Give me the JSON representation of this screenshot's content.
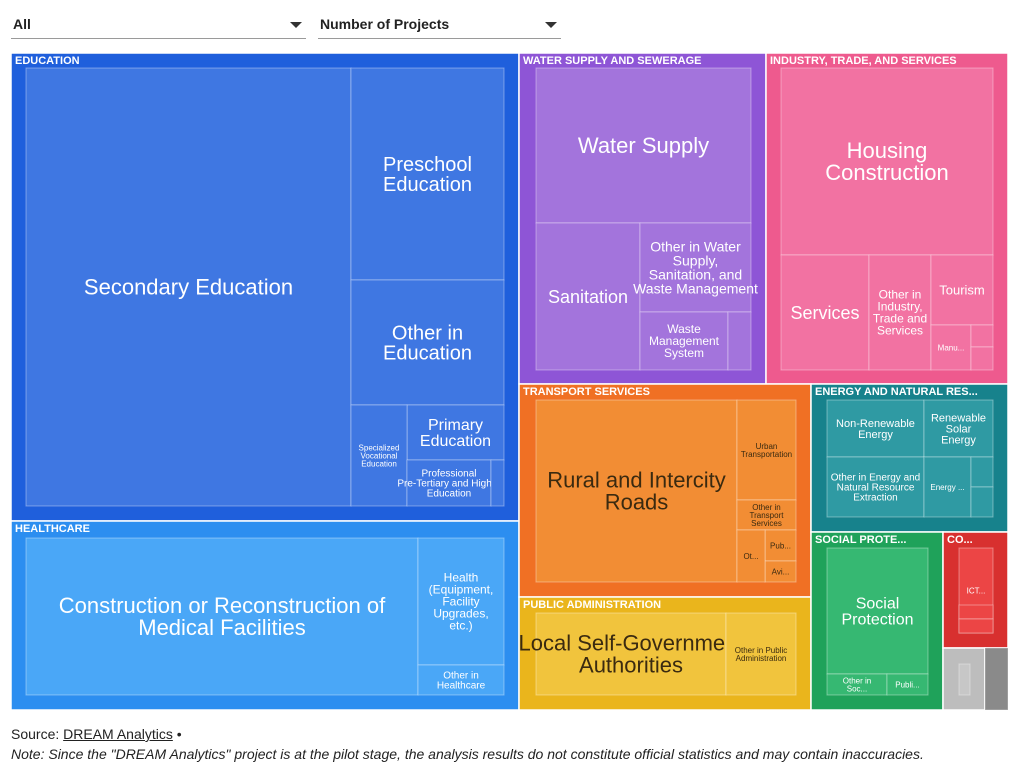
{
  "filters": {
    "region_value": "All",
    "metric_value": "Number of Projects"
  },
  "footer": {
    "source_label": "Source:",
    "source_link": "DREAM Analytics",
    "bullet": "•",
    "note": "Note: Since the \"DREAM Analytics\" project is at the pilot stage, the analysis results do not constitute official statistics and may contain inaccuracies."
  },
  "chart_data": {
    "type": "treemap",
    "metric": "Number of Projects",
    "groups": [
      {
        "label": "EDUCATION",
        "color": "#1f5fdc",
        "tile_color": "#3f77e2",
        "children": [
          {
            "label": "Secondary Education",
            "value": 139
          },
          {
            "label": "Preschool Education",
            "value": 31
          },
          {
            "label": "Other in Education",
            "value": 26
          },
          {
            "label": "Primary Education",
            "value": 7
          },
          {
            "label": "Specialized Vocational Education",
            "value": 7
          },
          {
            "label": "Professional Pre-Tertiary and Higher Education",
            "value": 6
          },
          {
            "label": "",
            "value": 1
          }
        ]
      },
      {
        "label": "HEALTHCARE",
        "color": "#2c8ef0",
        "tile_color": "#4aa7f7",
        "children": [
          {
            "label": "Construction or Reconstruction of Medical Facilities",
            "value": 66
          },
          {
            "label": "Health (Equipment, Facility Upgrades, etc.)",
            "value": 10
          },
          {
            "label": "Other in Healthcare",
            "value": 4
          }
        ]
      },
      {
        "label": "WATER SUPPLY AND SEWERAGE",
        "color": "#8e55d6",
        "tile_color": "#a374dc",
        "children": [
          {
            "label": "Water Supply",
            "value": 35
          },
          {
            "label": "Sanitation",
            "value": 17
          },
          {
            "label": "Other in Water Supply, Sanitation, and Waste Management",
            "value": 10
          },
          {
            "label": "Waste Management System",
            "value": 6
          },
          {
            "label": "",
            "value": 2
          }
        ]
      },
      {
        "label": "INDUSTRY, TRADE, AND SERVICES",
        "color": "#ee5a8e",
        "tile_color": "#f272a2",
        "children": [
          {
            "label": "Housing Construction",
            "value": 34
          },
          {
            "label": "Services",
            "value": 10
          },
          {
            "label": "Other in Industry, Trade and Services",
            "value": 6
          },
          {
            "label": "Tourism",
            "value": 6
          },
          {
            "label": "Manu...",
            "value": 3
          },
          {
            "label": "",
            "value": 1
          },
          {
            "label": "",
            "value": 1
          }
        ]
      },
      {
        "label": "TRANSPORT SERVICES",
        "color": "#f07024",
        "tile_color": "#f28d34",
        "children": [
          {
            "label": "Rural and Intercity Roads",
            "value": 45
          },
          {
            "label": "Urban Transportation",
            "value": 8
          },
          {
            "label": "Other in Transport Services",
            "value": 3
          },
          {
            "label": "Pub...",
            "value": 2
          },
          {
            "label": "Avi...",
            "value": 1
          },
          {
            "label": "Ot...",
            "value": 2
          }
        ]
      },
      {
        "label": "PUBLIC ADMINISTRATION",
        "color": "#eab51c",
        "tile_color": "#f1c43d",
        "children": [
          {
            "label": "Local Self-Government Authorities",
            "value": 23
          },
          {
            "label": "Other in Public Administration",
            "value": 8
          }
        ]
      },
      {
        "label": "ENERGY AND NATURAL RES...",
        "color": "#17828c",
        "tile_color": "#2f9aa3",
        "children": [
          {
            "label": "Non-Renewable Energy",
            "value": 11
          },
          {
            "label": "Renewable Solar Energy",
            "value": 7
          },
          {
            "label": "Other in Energy and Natural Resource Extraction",
            "value": 8
          },
          {
            "label": "Energy ...",
            "value": 3
          },
          {
            "label": "",
            "value": 1
          },
          {
            "label": "",
            "value": 1
          }
        ]
      },
      {
        "label": "SOCIAL PROTE...",
        "color": "#1fa25a",
        "tile_color": "#36b872",
        "children": [
          {
            "label": "Social Protection",
            "value": 17
          },
          {
            "label": "Other in Soc...",
            "value": 3
          },
          {
            "label": "Publi...",
            "value": 2
          }
        ]
      },
      {
        "label": "CO...",
        "color": "#d8302f",
        "tile_color": "#ec4545",
        "children": [
          {
            "label": "ICT...",
            "value": 4
          },
          {
            "label": "",
            "value": 1
          },
          {
            "label": "",
            "value": 1
          }
        ]
      },
      {
        "label": "",
        "color": "#bdbdbd",
        "tile_color": "#c7c7c7",
        "children": [
          {
            "label": "",
            "value": 2
          }
        ]
      },
      {
        "label": "",
        "color": "#8a8a8a",
        "tile_color": "#8a8a8a",
        "children": [
          {
            "label": "",
            "value": 2
          }
        ]
      }
    ]
  }
}
